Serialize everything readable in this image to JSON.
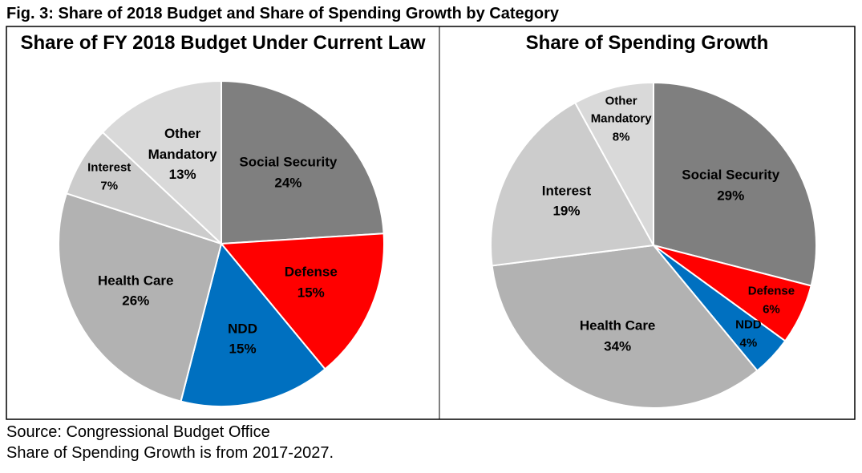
{
  "title": "Fig. 3: Share of 2018 Budget and Share of Spending Growth by Category",
  "source": "Source: Congressional Budget Office",
  "note": "Share of Spending Growth is from 2017-2027.",
  "chart_data": [
    {
      "type": "pie",
      "title": "Share of FY 2018 Budget Under Current Law",
      "categories": [
        "Social Security",
        "Defense",
        "NDD",
        "Health Care",
        "Interest",
        "Other Mandatory"
      ],
      "values": [
        24,
        15,
        15,
        26,
        7,
        13
      ],
      "value_labels": [
        "24%",
        "15%",
        "15%",
        "26%",
        "7%",
        "13%"
      ],
      "colors": [
        "#7f7f7f",
        "#ff0000",
        "#0070c0",
        "#b2b2b2",
        "#cccccc",
        "#d9d9d9"
      ]
    },
    {
      "type": "pie",
      "title": "Share of Spending Growth",
      "categories": [
        "Social Security",
        "Defense",
        "NDD",
        "Health Care",
        "Interest",
        "Other Mandatory"
      ],
      "values": [
        29,
        6,
        4,
        34,
        19,
        8
      ],
      "value_labels": [
        "29%",
        "6%",
        "4%",
        "34%",
        "19%",
        "8%"
      ],
      "colors": [
        "#7f7f7f",
        "#ff0000",
        "#0070c0",
        "#b2b2b2",
        "#cccccc",
        "#d9d9d9"
      ]
    }
  ]
}
